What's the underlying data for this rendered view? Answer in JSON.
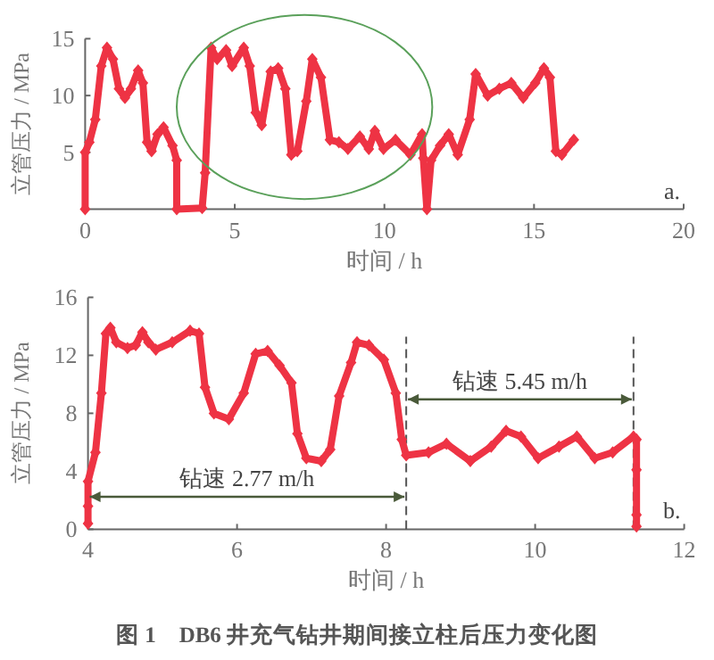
{
  "chart_data": [
    {
      "type": "line",
      "xlabel": "时间 / h",
      "ylabel": "立管压力 / MPa",
      "xlim": [
        0,
        20
      ],
      "ylim": [
        0,
        15
      ],
      "xticks": [
        0,
        5,
        10,
        15,
        20
      ],
      "yticks": [
        5,
        10,
        15
      ],
      "marker": "diamond",
      "x": [
        0,
        0,
        0.14,
        0.34,
        0.54,
        0.73,
        0.93,
        1.13,
        1.33,
        1.53,
        1.77,
        1.93,
        2.07,
        2.22,
        2.42,
        2.62,
        2.92,
        3.06,
        3.06,
        3.91,
        4.01,
        4.21,
        4.41,
        4.71,
        4.91,
        5.3,
        5.5,
        5.7,
        5.9,
        6.2,
        6.45,
        6.69,
        6.89,
        7.09,
        7.39,
        7.59,
        7.88,
        8.18,
        8.48,
        8.78,
        9.18,
        9.48,
        9.68,
        9.97,
        10.37,
        10.87,
        11.26,
        11.3,
        11.42,
        11.56,
        11.86,
        12.15,
        12.45,
        12.85,
        13.05,
        13.45,
        13.84,
        14.24,
        14.64,
        15.04,
        15.33,
        15.53,
        15.73,
        15.93,
        16.33
      ],
      "series": [
        {
          "color": "#ee3344",
          "values": [
            0,
            5,
            5.9,
            7.9,
            12.6,
            14.2,
            13.2,
            10.6,
            9.8,
            10.6,
            12.2,
            11.1,
            5.9,
            5.1,
            6.6,
            7.2,
            5.6,
            4.3,
            0,
            0.1,
            3.2,
            14.2,
            13.2,
            14,
            12.6,
            14.2,
            12.6,
            8.5,
            7.4,
            12.1,
            12.4,
            10.6,
            4.8,
            5.1,
            9.5,
            13.2,
            11.6,
            6.1,
            5.9,
            5.3,
            6.4,
            5.3,
            6.9,
            5.3,
            6.1,
            4.8,
            6.6,
            4.5,
            0,
            4.3,
            5.6,
            6.6,
            4.8,
            7.9,
            11.9,
            10,
            10.6,
            11.1,
            9.8,
            11.1,
            12.4,
            11.6,
            5.1,
            4.8,
            6.1
          ]
        }
      ],
      "annotations": [
        "a."
      ]
    },
    {
      "type": "line",
      "xlabel": "时间 / h",
      "ylabel": "立管压力 / MPa",
      "xlim": [
        4,
        12
      ],
      "ylim": [
        0,
        16
      ],
      "xticks": [
        4,
        6,
        8,
        10,
        12
      ],
      "yticks": [
        0,
        4,
        8,
        12,
        16
      ],
      "marker": "diamond",
      "x": [
        4,
        4,
        4,
        4.1,
        4.18,
        4.24,
        4.3,
        4.38,
        4.53,
        4.64,
        4.73,
        4.81,
        4.91,
        5.13,
        5.37,
        5.49,
        5.57,
        5.69,
        5.89,
        6.09,
        6.25,
        6.41,
        6.57,
        6.73,
        6.81,
        6.93,
        7.13,
        7.25,
        7.37,
        7.53,
        7.61,
        7.77,
        7.97,
        8.13,
        8.21,
        8.27,
        8.57,
        8.81,
        9.13,
        9.41,
        9.61,
        9.81,
        10.04,
        10.32,
        10.56,
        10.8,
        11.04,
        11.32,
        11.36,
        11.36,
        11.36,
        11.36
      ],
      "series": [
        {
          "color": "#ee3344",
          "values": [
            0.4,
            1.6,
            3.3,
            5.3,
            9.4,
            13.5,
            13.9,
            12.9,
            12.5,
            12.7,
            13.6,
            12.9,
            12.4,
            12.9,
            13.7,
            13.5,
            9.8,
            8,
            7.6,
            9.4,
            12.1,
            12.3,
            11.3,
            10.1,
            6.6,
            4.9,
            4.7,
            5.5,
            9.2,
            11.5,
            12.9,
            12.7,
            11.7,
            9.4,
            6.2,
            5.1,
            5.3,
            5.9,
            4.7,
            5.7,
            6.8,
            6.4,
            4.9,
            5.7,
            6.4,
            4.9,
            5.3,
            6.4,
            6.2,
            4.1,
            1,
            0.2
          ]
        }
      ],
      "ref_lines": [
        {
          "axis": "x",
          "value": 8.27,
          "line_style": "dashed",
          "color": "#555555"
        },
        {
          "axis": "x",
          "value": 11.32,
          "line_style": "dashed",
          "color": "#555555"
        }
      ],
      "annotations": [
        "b.",
        "钻速 2.77 m/h",
        "钻速 5.45 m/h",
        "图 1　DB6 井充气钻井期间接立柱后压力变化图"
      ]
    }
  ]
}
